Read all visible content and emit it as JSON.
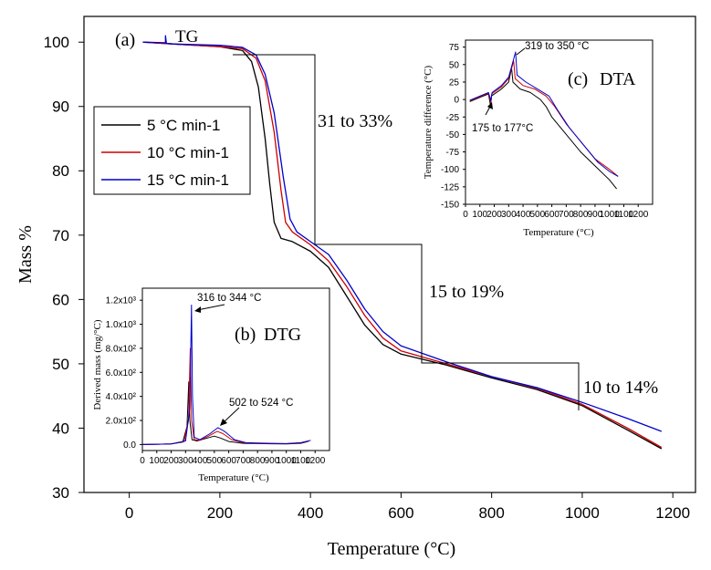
{
  "chart_data": [
    {
      "id": "main",
      "type": "line",
      "panel_label": "(a)",
      "title": "TG",
      "xlabel": "Temperature (°C)",
      "ylabel": "Mass %",
      "xlim": [
        -100,
        1250
      ],
      "ylim": [
        30,
        104
      ],
      "xticks": [
        0,
        200,
        400,
        600,
        800,
        1000,
        1200
      ],
      "yticks": [
        30,
        40,
        50,
        60,
        70,
        80,
        90,
        100
      ],
      "legend_position": "upper-left",
      "annotations": [
        "31 to 33%",
        "15 to 19%",
        "10 to 14%"
      ],
      "series": [
        {
          "name": "5 °C min-1",
          "color": "#000000",
          "points": [
            [
              30,
              100
            ],
            [
              100,
              99.7
            ],
            [
              200,
              99.3
            ],
            [
              250,
              98.7
            ],
            [
              270,
              97
            ],
            [
              285,
              93
            ],
            [
              300,
              85
            ],
            [
              310,
              78
            ],
            [
              320,
              72
            ],
            [
              335,
              69.5
            ],
            [
              360,
              69
            ],
            [
              400,
              67.5
            ],
            [
              440,
              65
            ],
            [
              480,
              60.5
            ],
            [
              520,
              56
            ],
            [
              560,
              53
            ],
            [
              600,
              51.5
            ],
            [
              700,
              49.8
            ],
            [
              800,
              47.8
            ],
            [
              900,
              46
            ],
            [
              1000,
              43.5
            ],
            [
              1100,
              39.7
            ],
            [
              1175,
              36.8
            ]
          ]
        },
        {
          "name": "10 °C min-1",
          "color": "#cc0000",
          "points": [
            [
              30,
              100
            ],
            [
              100,
              99.7
            ],
            [
              200,
              99.3
            ],
            [
              250,
              99
            ],
            [
              280,
              97.5
            ],
            [
              300,
              94
            ],
            [
              320,
              86
            ],
            [
              335,
              77
            ],
            [
              345,
              72
            ],
            [
              360,
              70.5
            ],
            [
              400,
              68.5
            ],
            [
              440,
              66
            ],
            [
              480,
              62
            ],
            [
              520,
              57.5
            ],
            [
              560,
              54
            ],
            [
              600,
              52
            ],
            [
              700,
              50
            ],
            [
              800,
              48
            ],
            [
              900,
              46.2
            ],
            [
              1000,
              43.7
            ],
            [
              1100,
              40
            ],
            [
              1175,
              37
            ]
          ]
        },
        {
          "name": "15 °C min-1",
          "color": "#0000cc",
          "points": [
            [
              30,
              100
            ],
            [
              80,
              99.9
            ],
            [
              80,
              101
            ],
            [
              82,
              99.8
            ],
            [
              100,
              99.7
            ],
            [
              200,
              99.5
            ],
            [
              250,
              99.2
            ],
            [
              280,
              98
            ],
            [
              300,
              95
            ],
            [
              320,
              89
            ],
            [
              340,
              79
            ],
            [
              355,
              72.5
            ],
            [
              370,
              70.5
            ],
            [
              400,
              69
            ],
            [
              440,
              67
            ],
            [
              480,
              63
            ],
            [
              520,
              58.5
            ],
            [
              560,
              55
            ],
            [
              600,
              52.8
            ],
            [
              700,
              50.3
            ],
            [
              800,
              48
            ],
            [
              900,
              46.3
            ],
            [
              1000,
              44
            ],
            [
              1100,
              41.5
            ],
            [
              1175,
              39.5
            ]
          ]
        }
      ]
    },
    {
      "id": "dtg",
      "type": "line",
      "panel_label": "(b)",
      "title": "DTG",
      "xlabel": "Temperature (°C)",
      "ylabel": "Derived mass (mg/°C)",
      "xlim": [
        0,
        1300
      ],
      "ylim": [
        -50,
        1300
      ],
      "xticks": [
        0,
        100,
        200,
        300,
        400,
        500,
        600,
        700,
        800,
        900,
        1000,
        1100,
        1200
      ],
      "yticks": [
        0,
        200,
        400,
        600,
        800,
        1000,
        1200
      ],
      "ytick_labels": [
        "0.0",
        "2.0x10²",
        "4.0x10²",
        "6.0x10²",
        "8.0x10²",
        "1.0x10³",
        "1.2x10³"
      ],
      "annotations": [
        "316 to 344 °C",
        "502 to 524 °C"
      ],
      "series": [
        {
          "name": "5 °C min-1",
          "color": "#000000",
          "points": [
            [
              0,
              0
            ],
            [
              100,
              2
            ],
            [
              200,
              5
            ],
            [
              280,
              20
            ],
            [
              310,
              150
            ],
            [
              322,
              520
            ],
            [
              330,
              200
            ],
            [
              345,
              40
            ],
            [
              380,
              30
            ],
            [
              440,
              50
            ],
            [
              500,
              70
            ],
            [
              540,
              55
            ],
            [
              600,
              25
            ],
            [
              700,
              10
            ],
            [
              800,
              8
            ],
            [
              900,
              6
            ],
            [
              1000,
              5
            ],
            [
              1100,
              10
            ],
            [
              1150,
              25
            ]
          ]
        },
        {
          "name": "10 °C min-1",
          "color": "#cc0000",
          "points": [
            [
              0,
              0
            ],
            [
              100,
              2
            ],
            [
              200,
              5
            ],
            [
              290,
              25
            ],
            [
              320,
              200
            ],
            [
              333,
              800
            ],
            [
              342,
              200
            ],
            [
              360,
              40
            ],
            [
              400,
              35
            ],
            [
              460,
              70
            ],
            [
              520,
              110
            ],
            [
              560,
              90
            ],
            [
              620,
              40
            ],
            [
              700,
              15
            ],
            [
              800,
              10
            ],
            [
              900,
              8
            ],
            [
              1000,
              7
            ],
            [
              1100,
              12
            ],
            [
              1160,
              30
            ]
          ]
        },
        {
          "name": "15 °C min-1",
          "color": "#0000cc",
          "points": [
            [
              0,
              0
            ],
            [
              100,
              2
            ],
            [
              200,
              5
            ],
            [
              300,
              30
            ],
            [
              330,
              300
            ],
            [
              341,
              1160
            ],
            [
              348,
              400
            ],
            [
              360,
              60
            ],
            [
              400,
              40
            ],
            [
              470,
              90
            ],
            [
              525,
              140
            ],
            [
              570,
              110
            ],
            [
              640,
              40
            ],
            [
              720,
              15
            ],
            [
              800,
              12
            ],
            [
              900,
              10
            ],
            [
              1000,
              8
            ],
            [
              1100,
              15
            ],
            [
              1170,
              35
            ]
          ]
        }
      ]
    },
    {
      "id": "dta",
      "type": "line",
      "panel_label": "(c)",
      "title": "DTA",
      "xlabel": "Temperature (°C)",
      "ylabel": "Temperature difference (°C)",
      "xlim": [
        0,
        1300
      ],
      "ylim": [
        -150,
        85
      ],
      "xticks": [
        0,
        100,
        200,
        300,
        400,
        500,
        600,
        700,
        800,
        900,
        1000,
        1100,
        1200
      ],
      "yticks": [
        -150,
        -125,
        -100,
        -75,
        -50,
        -25,
        0,
        25,
        50,
        75
      ],
      "annotations": [
        "319 to 350 °C",
        "175 to 177°C"
      ],
      "series": [
        {
          "name": "5 °C min-1",
          "color": "#000000",
          "points": [
            [
              30,
              -3
            ],
            [
              100,
              3
            ],
            [
              160,
              8
            ],
            [
              175,
              -10
            ],
            [
              180,
              5
            ],
            [
              250,
              15
            ],
            [
              300,
              25
            ],
            [
              320,
              45
            ],
            [
              330,
              25
            ],
            [
              380,
              15
            ],
            [
              450,
              10
            ],
            [
              520,
              0
            ],
            [
              560,
              -10
            ],
            [
              600,
              -25
            ],
            [
              700,
              -50
            ],
            [
              800,
              -75
            ],
            [
              900,
              -95
            ],
            [
              1000,
              -115
            ],
            [
              1050,
              -128
            ]
          ]
        },
        {
          "name": "10 °C min-1",
          "color": "#cc0000",
          "points": [
            [
              30,
              -2
            ],
            [
              100,
              4
            ],
            [
              160,
              9
            ],
            [
              176,
              -5
            ],
            [
              182,
              8
            ],
            [
              250,
              18
            ],
            [
              300,
              30
            ],
            [
              335,
              55
            ],
            [
              345,
              30
            ],
            [
              400,
              20
            ],
            [
              480,
              15
            ],
            [
              560,
              5
            ],
            [
              620,
              -10
            ],
            [
              700,
              -35
            ],
            [
              800,
              -60
            ],
            [
              900,
              -85
            ],
            [
              1000,
              -100
            ],
            [
              1060,
              -110
            ]
          ]
        },
        {
          "name": "15 °C min-1",
          "color": "#0000cc",
          "points": [
            [
              30,
              -1
            ],
            [
              100,
              5
            ],
            [
              160,
              10
            ],
            [
              177,
              -2
            ],
            [
              185,
              10
            ],
            [
              250,
              20
            ],
            [
              300,
              32
            ],
            [
              348,
              68
            ],
            [
              358,
              35
            ],
            [
              420,
              25
            ],
            [
              500,
              15
            ],
            [
              580,
              5
            ],
            [
              640,
              -15
            ],
            [
              720,
              -40
            ],
            [
              820,
              -65
            ],
            [
              920,
              -90
            ],
            [
              1000,
              -103
            ],
            [
              1060,
              -110
            ]
          ]
        }
      ]
    }
  ]
}
